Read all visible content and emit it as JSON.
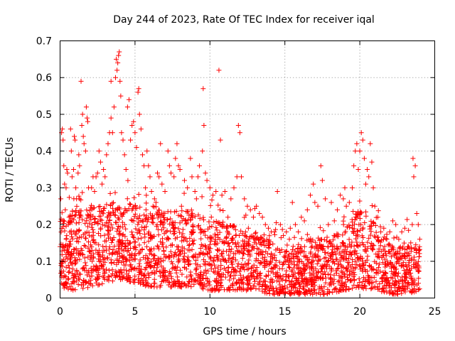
{
  "chart_data": {
    "type": "scatter",
    "title": "Day 244 of 2023, Rate Of TEC Index for receiver iqal",
    "xlabel": "GPS time / hours",
    "ylabel": "ROTI / TECUs",
    "xlim": [
      0,
      25
    ],
    "ylim": [
      0,
      0.7
    ],
    "xticks": [
      "0",
      "5",
      "10",
      "15",
      "20",
      "25"
    ],
    "yticks": [
      "0",
      "0.1",
      "0.2",
      "0.3",
      "0.4",
      "0.5",
      "0.6",
      "0.7"
    ],
    "xtick_values": [
      0,
      5,
      10,
      15,
      20,
      25
    ],
    "ytick_values": [
      0,
      0.1,
      0.2,
      0.3,
      0.4,
      0.5,
      0.6,
      0.7
    ],
    "grid": true,
    "marker": "+",
    "color": "#ff0000",
    "series": [
      {
        "name": "ROTI",
        "points": [
          [
            0.0,
            0.14
          ],
          [
            0.05,
            0.27
          ],
          [
            0.1,
            0.45
          ],
          [
            0.15,
            0.46
          ],
          [
            0.2,
            0.43
          ],
          [
            0.25,
            0.36
          ],
          [
            0.3,
            0.31
          ],
          [
            0.35,
            0.24
          ],
          [
            0.4,
            0.3
          ],
          [
            0.45,
            0.35
          ],
          [
            0.5,
            0.34
          ],
          [
            0.55,
            0.2
          ],
          [
            0.6,
            0.22
          ],
          [
            0.7,
            0.46
          ],
          [
            0.75,
            0.4
          ],
          [
            0.8,
            0.33
          ],
          [
            0.9,
            0.35
          ],
          [
            0.95,
            0.44
          ],
          [
            1.0,
            0.43
          ],
          [
            1.05,
            0.3
          ],
          [
            1.1,
            0.27
          ],
          [
            1.2,
            0.34
          ],
          [
            1.25,
            0.39
          ],
          [
            1.3,
            0.36
          ],
          [
            1.4,
            0.59
          ],
          [
            1.45,
            0.47
          ],
          [
            1.5,
            0.5
          ],
          [
            1.55,
            0.44
          ],
          [
            1.6,
            0.42
          ],
          [
            1.7,
            0.4
          ],
          [
            1.75,
            0.52
          ],
          [
            1.8,
            0.49
          ],
          [
            1.85,
            0.48
          ],
          [
            1.9,
            0.3
          ],
          [
            2.0,
            0.22
          ],
          [
            2.1,
            0.3
          ],
          [
            2.2,
            0.33
          ],
          [
            2.3,
            0.29
          ],
          [
            2.4,
            0.33
          ],
          [
            2.5,
            0.34
          ],
          [
            2.6,
            0.4
          ],
          [
            2.7,
            0.37
          ],
          [
            2.8,
            0.31
          ],
          [
            2.9,
            0.35
          ],
          [
            3.0,
            0.33
          ],
          [
            3.1,
            0.39
          ],
          [
            3.2,
            0.42
          ],
          [
            3.3,
            0.45
          ],
          [
            3.4,
            0.49
          ],
          [
            3.5,
            0.45
          ],
          [
            3.4,
            0.59
          ],
          [
            3.6,
            0.52
          ],
          [
            3.7,
            0.6
          ],
          [
            3.75,
            0.65
          ],
          [
            3.8,
            0.62
          ],
          [
            3.85,
            0.64
          ],
          [
            3.9,
            0.66
          ],
          [
            3.95,
            0.67
          ],
          [
            4.0,
            0.59
          ],
          [
            4.05,
            0.55
          ],
          [
            4.1,
            0.45
          ],
          [
            4.2,
            0.43
          ],
          [
            4.3,
            0.39
          ],
          [
            4.4,
            0.35
          ],
          [
            4.5,
            0.52
          ],
          [
            4.6,
            0.54
          ],
          [
            4.7,
            0.43
          ],
          [
            4.8,
            0.47
          ],
          [
            4.9,
            0.48
          ],
          [
            5.0,
            0.45
          ],
          [
            5.1,
            0.41
          ],
          [
            5.2,
            0.56
          ],
          [
            5.25,
            0.57
          ],
          [
            5.3,
            0.5
          ],
          [
            5.4,
            0.46
          ],
          [
            5.5,
            0.39
          ],
          [
            5.6,
            0.36
          ],
          [
            5.7,
            0.3
          ],
          [
            5.8,
            0.4
          ],
          [
            5.9,
            0.36
          ],
          [
            6.0,
            0.33
          ],
          [
            6.1,
            0.29
          ],
          [
            6.2,
            0.25
          ],
          [
            6.3,
            0.27
          ],
          [
            6.4,
            0.26
          ],
          [
            6.5,
            0.34
          ],
          [
            6.6,
            0.33
          ],
          [
            6.7,
            0.42
          ],
          [
            6.8,
            0.31
          ],
          [
            7.0,
            0.29
          ],
          [
            7.2,
            0.4
          ],
          [
            7.3,
            0.36
          ],
          [
            7.4,
            0.34
          ],
          [
            7.6,
            0.33
          ],
          [
            7.7,
            0.38
          ],
          [
            7.8,
            0.42
          ],
          [
            7.9,
            0.36
          ],
          [
            8.0,
            0.35
          ],
          [
            8.1,
            0.25
          ],
          [
            8.3,
            0.32
          ],
          [
            8.5,
            0.3
          ],
          [
            8.7,
            0.38
          ],
          [
            8.8,
            0.33
          ],
          [
            9.0,
            0.29
          ],
          [
            9.1,
            0.27
          ],
          [
            9.2,
            0.33
          ],
          [
            9.3,
            0.36
          ],
          [
            9.5,
            0.4
          ],
          [
            9.6,
            0.47
          ],
          [
            9.55,
            0.57
          ],
          [
            9.7,
            0.34
          ],
          [
            9.8,
            0.32
          ],
          [
            10.0,
            0.3
          ],
          [
            10.2,
            0.28
          ],
          [
            10.4,
            0.29
          ],
          [
            10.6,
            0.62
          ],
          [
            10.7,
            0.43
          ],
          [
            10.8,
            0.28
          ],
          [
            11.0,
            0.29
          ],
          [
            11.2,
            0.22
          ],
          [
            11.4,
            0.27
          ],
          [
            11.6,
            0.3
          ],
          [
            11.8,
            0.33
          ],
          [
            11.9,
            0.47
          ],
          [
            12.0,
            0.45
          ],
          [
            12.1,
            0.33
          ],
          [
            12.3,
            0.27
          ],
          [
            12.5,
            0.25
          ],
          [
            12.7,
            0.24
          ],
          [
            12.9,
            0.22
          ],
          [
            13.1,
            0.25
          ],
          [
            13.3,
            0.23
          ],
          [
            13.5,
            0.22
          ],
          [
            13.7,
            0.2
          ],
          [
            13.9,
            0.19
          ],
          [
            14.1,
            0.18
          ],
          [
            14.3,
            0.18
          ],
          [
            14.5,
            0.29
          ],
          [
            14.7,
            0.2
          ],
          [
            14.9,
            0.17
          ],
          [
            15.1,
            0.18
          ],
          [
            15.3,
            0.16
          ],
          [
            15.5,
            0.26
          ],
          [
            15.7,
            0.2
          ],
          [
            15.9,
            0.18
          ],
          [
            16.1,
            0.22
          ],
          [
            16.3,
            0.21
          ],
          [
            16.5,
            0.24
          ],
          [
            16.7,
            0.28
          ],
          [
            16.9,
            0.31
          ],
          [
            17.0,
            0.26
          ],
          [
            17.2,
            0.25
          ],
          [
            17.4,
            0.36
          ],
          [
            17.5,
            0.32
          ],
          [
            17.7,
            0.27
          ],
          [
            17.9,
            0.2
          ],
          [
            18.1,
            0.26
          ],
          [
            18.3,
            0.21
          ],
          [
            18.5,
            0.24
          ],
          [
            18.7,
            0.28
          ],
          [
            18.9,
            0.27
          ],
          [
            19.0,
            0.3
          ],
          [
            19.1,
            0.25
          ],
          [
            19.3,
            0.26
          ],
          [
            19.5,
            0.3
          ],
          [
            19.6,
            0.36
          ],
          [
            19.7,
            0.4
          ],
          [
            19.8,
            0.42
          ],
          [
            19.9,
            0.35
          ],
          [
            20.0,
            0.4
          ],
          [
            20.1,
            0.45
          ],
          [
            20.2,
            0.43
          ],
          [
            20.3,
            0.38
          ],
          [
            20.4,
            0.31
          ],
          [
            20.5,
            0.35
          ],
          [
            20.6,
            0.33
          ],
          [
            20.7,
            0.42
          ],
          [
            20.8,
            0.37
          ],
          [
            20.9,
            0.3
          ],
          [
            21.0,
            0.25
          ],
          [
            21.2,
            0.22
          ],
          [
            21.4,
            0.18
          ],
          [
            21.6,
            0.19
          ],
          [
            21.8,
            0.16
          ],
          [
            22.0,
            0.18
          ],
          [
            22.2,
            0.21
          ],
          [
            22.4,
            0.2
          ],
          [
            22.6,
            0.16
          ],
          [
            22.8,
            0.18
          ],
          [
            23.0,
            0.19
          ],
          [
            23.2,
            0.14
          ],
          [
            23.4,
            0.15
          ],
          [
            23.5,
            0.2
          ],
          [
            23.55,
            0.38
          ],
          [
            23.6,
            0.33
          ],
          [
            23.7,
            0.36
          ],
          [
            23.8,
            0.23
          ],
          [
            23.9,
            0.2
          ],
          [
            24.0,
            0.16
          ]
        ],
        "band": [
          [
            0.0,
            0.03,
            0.22
          ],
          [
            1.0,
            0.02,
            0.24
          ],
          [
            2.0,
            0.03,
            0.25
          ],
          [
            3.0,
            0.04,
            0.26
          ],
          [
            4.0,
            0.05,
            0.25
          ],
          [
            5.0,
            0.04,
            0.26
          ],
          [
            6.0,
            0.03,
            0.23
          ],
          [
            7.0,
            0.03,
            0.24
          ],
          [
            8.0,
            0.03,
            0.24
          ],
          [
            9.0,
            0.03,
            0.24
          ],
          [
            10.0,
            0.02,
            0.22
          ],
          [
            11.0,
            0.02,
            0.21
          ],
          [
            12.0,
            0.02,
            0.19
          ],
          [
            13.0,
            0.02,
            0.18
          ],
          [
            14.0,
            0.01,
            0.16
          ],
          [
            15.0,
            0.01,
            0.13
          ],
          [
            16.0,
            0.01,
            0.15
          ],
          [
            17.0,
            0.01,
            0.17
          ],
          [
            18.0,
            0.01,
            0.16
          ],
          [
            19.0,
            0.02,
            0.2
          ],
          [
            20.0,
            0.02,
            0.24
          ],
          [
            21.0,
            0.02,
            0.2
          ],
          [
            22.0,
            0.01,
            0.15
          ],
          [
            23.0,
            0.01,
            0.14
          ],
          [
            24.0,
            0.02,
            0.15
          ]
        ]
      }
    ]
  }
}
